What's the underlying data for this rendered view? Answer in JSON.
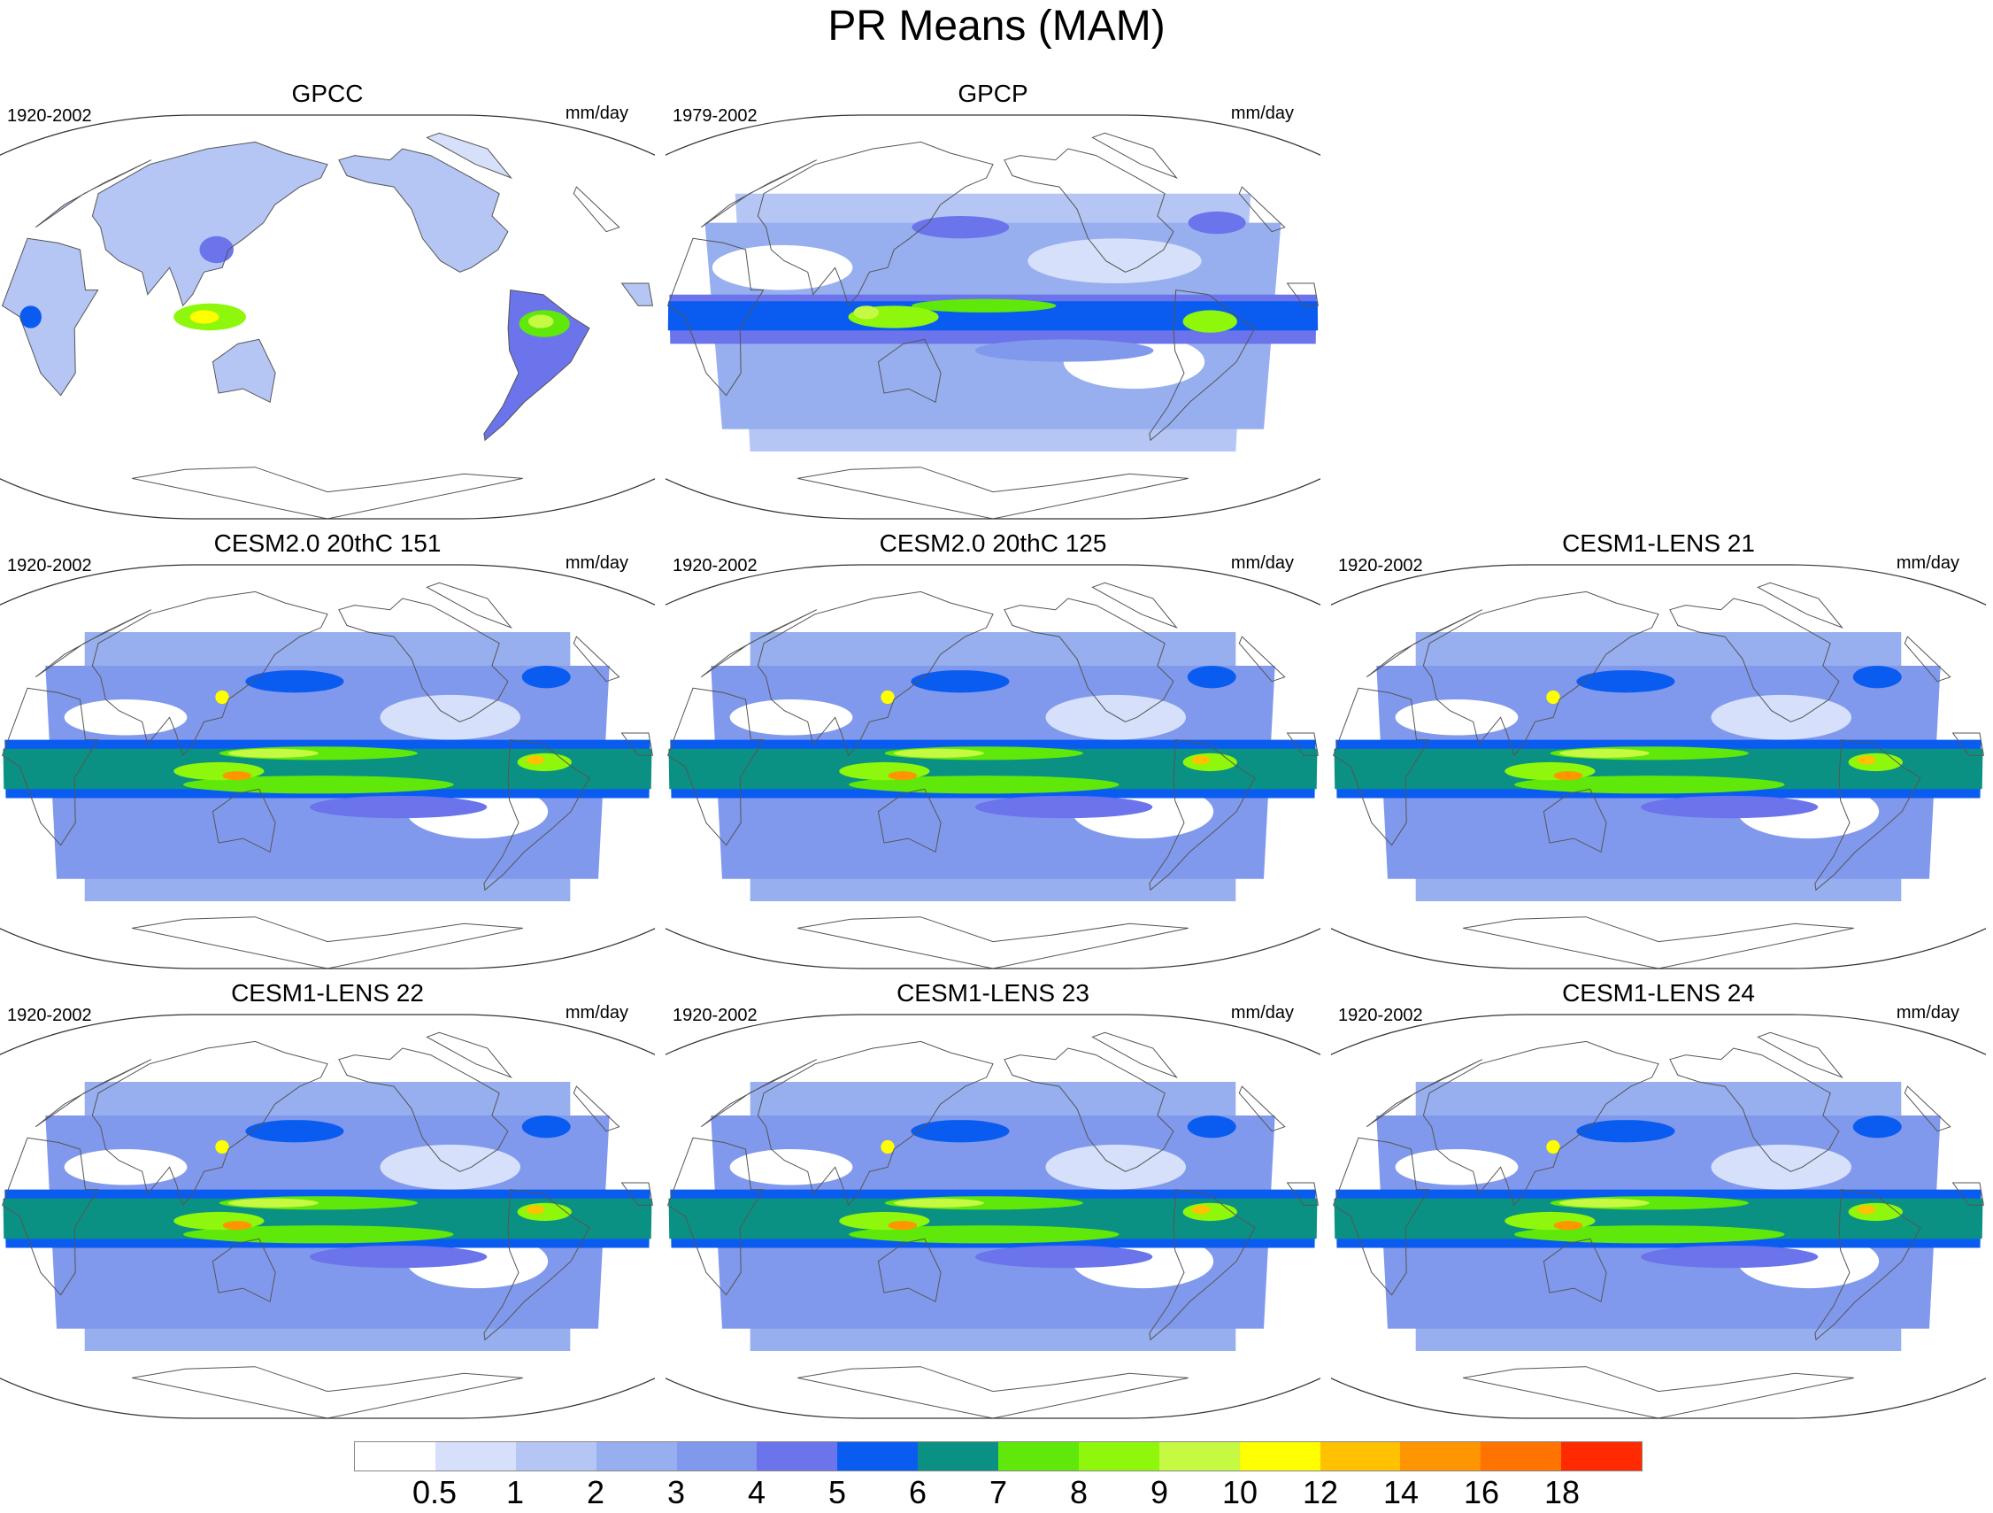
{
  "title": "PR Means (MAM)",
  "panels": [
    {
      "title": "GPCC",
      "period": "1920-2002",
      "units": "mm/day",
      "pattern": "land-only"
    },
    {
      "title": "GPCP",
      "period": "1979-2002",
      "units": "mm/day",
      "pattern": "observed"
    },
    {
      "title": "CESM2.0 20thC 151",
      "period": "1920-2002",
      "units": "mm/day",
      "pattern": "model"
    },
    {
      "title": "CESM2.0 20thC 125",
      "period": "1920-2002",
      "units": "mm/day",
      "pattern": "model"
    },
    {
      "title": "CESM1-LENS 21",
      "period": "1920-2002",
      "units": "mm/day",
      "pattern": "model"
    },
    {
      "title": "CESM1-LENS 22",
      "period": "1920-2002",
      "units": "mm/day",
      "pattern": "model"
    },
    {
      "title": "CESM1-LENS 23",
      "period": "1920-2002",
      "units": "mm/day",
      "pattern": "model"
    },
    {
      "title": "CESM1-LENS 24",
      "period": "1920-2002",
      "units": "mm/day",
      "pattern": "model"
    }
  ],
  "colorbar": {
    "levels": [
      "0.5",
      "1",
      "2",
      "3",
      "4",
      "5",
      "6",
      "7",
      "8",
      "9",
      "10",
      "12",
      "14",
      "16",
      "18"
    ],
    "colors": [
      "#ffffff",
      "#d6e0fa",
      "#b5c6f5",
      "#97afef",
      "#8199ec",
      "#6b74ea",
      "#0a5cf0",
      "#0b9183",
      "#60e80a",
      "#8ef70b",
      "#c6f942",
      "#ffff00",
      "#ffc100",
      "#ff9500",
      "#ff7300",
      "#ff2a00"
    ]
  }
}
